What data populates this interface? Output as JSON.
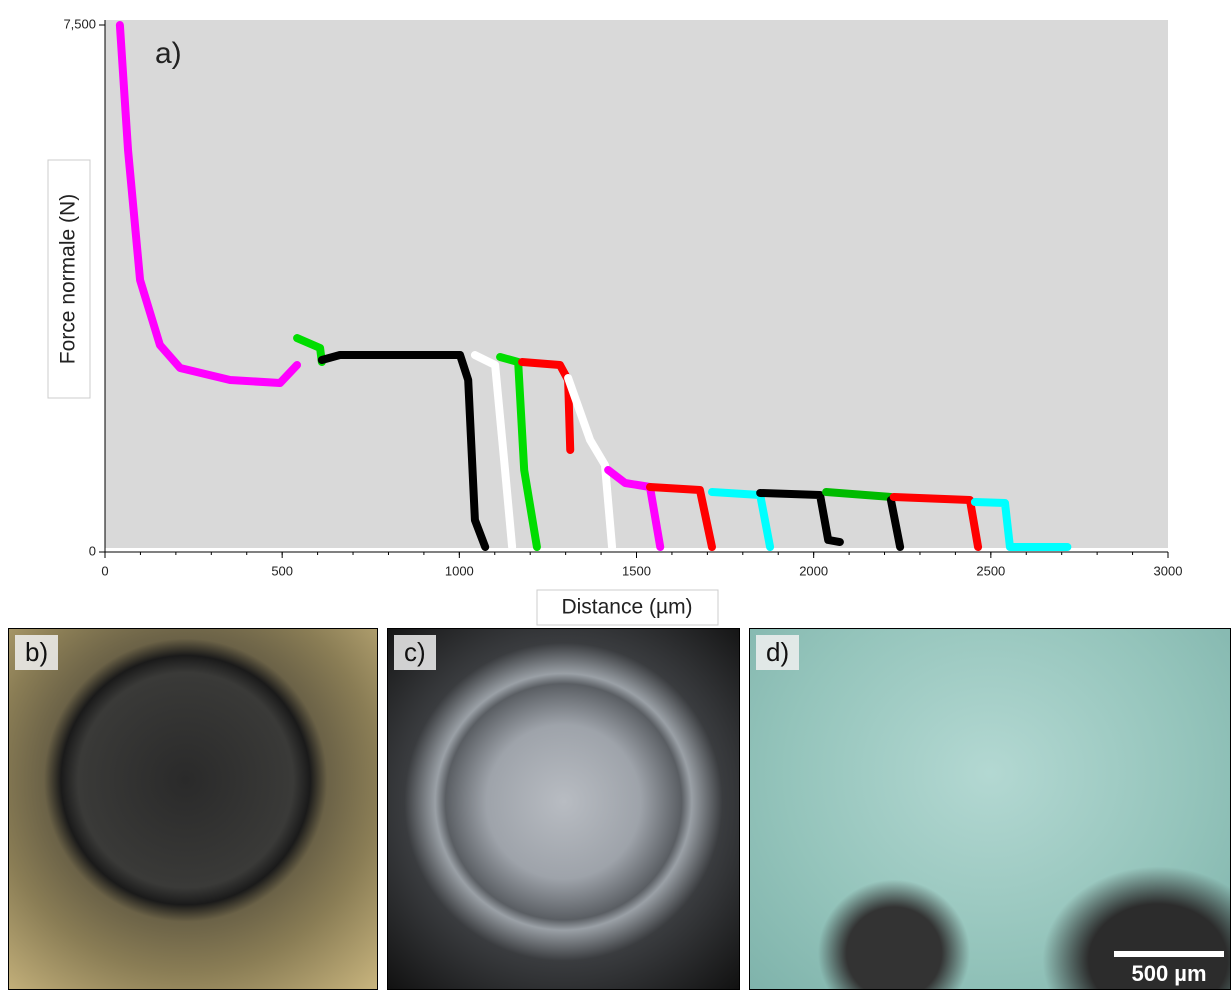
{
  "chart_data": {
    "type": "line",
    "title": "a)",
    "xlabel": "Distance (µm)",
    "ylabel": "Force normale (N)",
    "xlim": [
      0,
      3000
    ],
    "xticks": [
      0,
      500,
      1000,
      1500,
      2000,
      2500,
      3000
    ],
    "ylim": [
      0,
      7500
    ],
    "yticks": [
      0,
      {
        "value": 7500,
        "label": "7,500"
      }
    ],
    "series": [
      {
        "color": "#ff00ff",
        "x": [
          42,
          65,
          99,
          155,
          212,
          353,
          494,
          542
        ],
        "values": [
          7500,
          5720,
          3870,
          2946,
          2619,
          2448,
          2405,
          2661
        ]
      },
      {
        "color": "#00dd00",
        "x": [
          542,
          607,
          612
        ],
        "values": [
          3045,
          2903,
          2704
        ]
      },
      {
        "color": "#000000",
        "x": [
          612,
          663,
          833,
          1002,
          1025,
          1044,
          1073
        ],
        "values": [
          2732,
          2803,
          2803,
          2803,
          2448,
          455,
          71
        ]
      },
      {
        "color": "#ffffff",
        "x": [
          1044,
          1101,
          1129,
          1149
        ],
        "values": [
          2803,
          2661,
          1167,
          71
        ]
      },
      {
        "color": "#00dd00",
        "x": [
          1115,
          1166,
          1183,
          1219
        ],
        "values": [
          2775,
          2704,
          1167,
          71
        ]
      },
      {
        "color": "#ff0000",
        "x": [
          1177,
          1284,
          1307,
          1313
        ],
        "values": [
          2704,
          2661,
          2448,
          1452
        ]
      },
      {
        "color": "#ffffff",
        "x": [
          1307,
          1369,
          1411,
          1431
        ],
        "values": [
          2476,
          1594,
          1238,
          71
        ]
      },
      {
        "color": "#ff00ff",
        "x": [
          1420,
          1468,
          1538,
          1567
        ],
        "values": [
          1167,
          982,
          925,
          71
        ]
      },
      {
        "color": "#ff0000",
        "x": [
          1538,
          1679,
          1713
        ],
        "values": [
          925,
          882,
          71
        ]
      },
      {
        "color": "#00ffff",
        "x": [
          1713,
          1849,
          1877
        ],
        "values": [
          854,
          811,
          71
        ]
      },
      {
        "color": "#000000",
        "x": [
          1849,
          2018,
          2041,
          2074
        ],
        "values": [
          840,
          811,
          171,
          142
        ]
      },
      {
        "color": "#00bb00",
        "x": [
          2035,
          2218
        ],
        "values": [
          854,
          783
        ]
      },
      {
        "color": "#000000",
        "x": [
          2218,
          2244
        ],
        "values": [
          740,
          71
        ]
      },
      {
        "color": "#ff0000",
        "x": [
          2226,
          2441,
          2464
        ],
        "values": [
          783,
          740,
          71
        ]
      },
      {
        "color": "#00ffff",
        "x": [
          2455,
          2540,
          2554,
          2716
        ],
        "values": [
          711,
          697,
          71,
          71
        ]
      }
    ]
  },
  "panels": [
    "b)",
    "c)",
    "d)"
  ],
  "scale_bar": "500 µm"
}
